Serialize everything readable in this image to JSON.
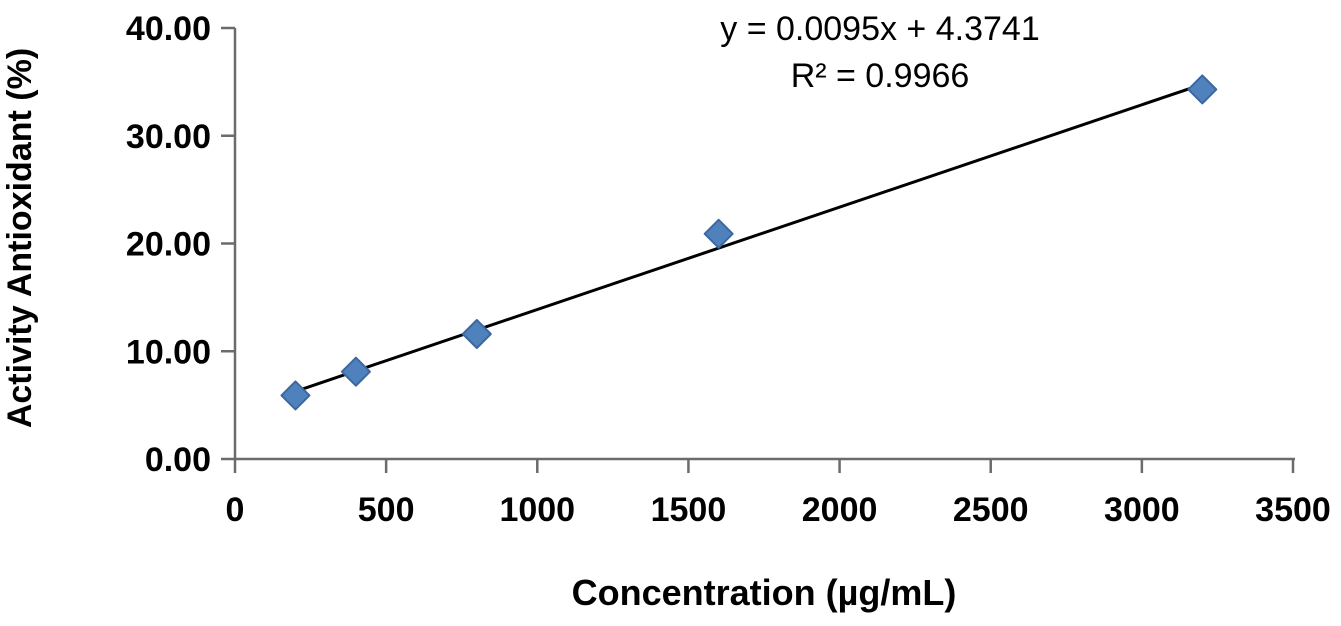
{
  "chart_data": {
    "type": "scatter",
    "title": "",
    "xlabel": "Concentration (µg/mL)",
    "ylabel": "Activity Antioxidant (%)",
    "xlim": [
      0,
      3500
    ],
    "ylim": [
      0,
      40
    ],
    "grid": "off",
    "legend": "none",
    "x_ticks": [
      {
        "value": 0,
        "label": "0"
      },
      {
        "value": 500,
        "label": "500"
      },
      {
        "value": 1000,
        "label": "1000"
      },
      {
        "value": 1500,
        "label": "1500"
      },
      {
        "value": 2000,
        "label": "2000"
      },
      {
        "value": 2500,
        "label": "2500"
      },
      {
        "value": 3000,
        "label": "3000"
      },
      {
        "value": 3500,
        "label": "3500"
      }
    ],
    "y_ticks": [
      {
        "value": 0,
        "label": "0.00"
      },
      {
        "value": 10,
        "label": "10.00"
      },
      {
        "value": 20,
        "label": "20.00"
      },
      {
        "value": 30,
        "label": "30.00"
      },
      {
        "value": 40,
        "label": "40.00"
      }
    ],
    "series": [
      {
        "name": "activity-antioxidant",
        "marker": "diamond",
        "points": [
          {
            "x": 200,
            "y": 5.9
          },
          {
            "x": 400,
            "y": 8.1
          },
          {
            "x": 800,
            "y": 11.6
          },
          {
            "x": 1600,
            "y": 20.9
          },
          {
            "x": 3200,
            "y": 34.3
          }
        ]
      }
    ],
    "trendline": {
      "slope": 0.0095,
      "intercept": 4.3741,
      "x_start": 200,
      "x_end": 3200,
      "equation_label": "y = 0.0095x + 4.3741",
      "r2_label": "R² = 0.9966"
    },
    "colors": {
      "marker_fill": "#4f81bd",
      "marker_stroke": "#3c68a0",
      "trendline": "#000000",
      "axis": "#6b6b6b",
      "text": "#000000"
    }
  }
}
